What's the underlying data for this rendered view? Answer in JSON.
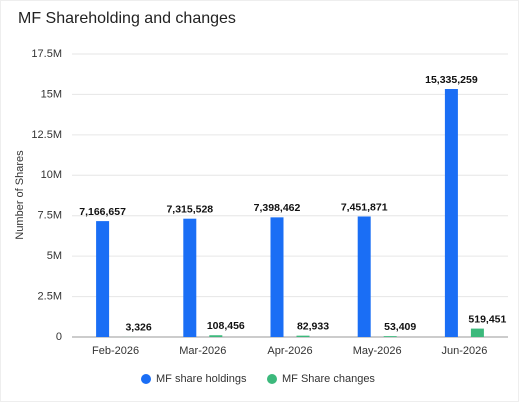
{
  "chart_data": {
    "type": "bar",
    "title": "MF Shareholding and changes",
    "y_label": "Number of Shares",
    "categories": [
      "Feb-2026",
      "Mar-2026",
      "Apr-2026",
      "May-2026",
      "Jun-2026"
    ],
    "series": [
      {
        "name": "MF share holdings",
        "color": "#1a6ef5",
        "values": [
          7166657,
          7315528,
          7398462,
          7451871,
          15335259
        ],
        "value_labels": [
          "7,166,657",
          "7,315,528",
          "7,398,462",
          "7,451,871",
          "15,335,259"
        ]
      },
      {
        "name": "MF Share changes",
        "color": "#3cb97c",
        "values": [
          3326,
          108456,
          82933,
          53409,
          519451
        ],
        "value_labels": [
          "3,326",
          "108,456",
          "82,933",
          "53,409",
          "519,451"
        ]
      }
    ],
    "ylim": [
      0,
      17500000
    ],
    "yticks": [
      0,
      {
        "value": 2500000,
        "label": "2.5M"
      },
      {
        "value": 5000000,
        "label": "5M"
      },
      {
        "value": 7500000,
        "label": "7.5M"
      },
      {
        "value": 10000000,
        "label": "10M"
      },
      {
        "value": 12500000,
        "label": "12.5M"
      },
      {
        "value": 15000000,
        "label": "15M"
      },
      {
        "value": 17500000,
        "label": "17.5M"
      }
    ],
    "grid": true,
    "legend": "bottom"
  }
}
